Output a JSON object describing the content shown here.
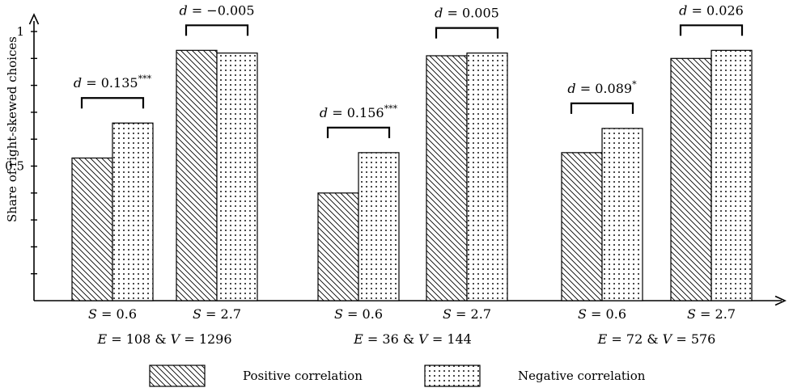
{
  "chart_data": {
    "type": "bar",
    "ylabel": "Share of right-skewed choices",
    "ylim": [
      0,
      1.07
    ],
    "y_tick_labels": [
      {
        "value": 0.5,
        "label": "0.5"
      },
      {
        "value": 1.0,
        "label": "1"
      }
    ],
    "y_minor_tick_step": 0.1,
    "groups": [
      {
        "label": {
          "e_sym": "E",
          "e_val": "108",
          "v_sym": "V",
          "v_val": "1296"
        },
        "subgroups": [
          {
            "s_sym": "S",
            "s_val": "0.6",
            "values": [
              0.53,
              0.66
            ],
            "d_sym": "d",
            "d_val": "0.135",
            "stars": "***"
          },
          {
            "s_sym": "S",
            "s_val": "2.7",
            "values": [
              0.93,
              0.92
            ],
            "d_sym": "d",
            "d_val": "−0.005",
            "stars": ""
          }
        ]
      },
      {
        "label": {
          "e_sym": "E",
          "e_val": "36",
          "v_sym": "V",
          "v_val": "144"
        },
        "subgroups": [
          {
            "s_sym": "S",
            "s_val": "0.6",
            "values": [
              0.4,
              0.55
            ],
            "d_sym": "d",
            "d_val": "0.156",
            "stars": "***"
          },
          {
            "s_sym": "S",
            "s_val": "2.7",
            "values": [
              0.91,
              0.92
            ],
            "d_sym": "d",
            "d_val": "0.005",
            "stars": ""
          }
        ]
      },
      {
        "label": {
          "e_sym": "E",
          "e_val": "72",
          "v_sym": "V",
          "v_val": "576"
        },
        "subgroups": [
          {
            "s_sym": "S",
            "s_val": "0.6",
            "values": [
              0.55,
              0.64
            ],
            "d_sym": "d",
            "d_val": "0.089",
            "stars": "*"
          },
          {
            "s_sym": "S",
            "s_val": "2.7",
            "values": [
              0.9,
              0.93
            ],
            "d_sym": "d",
            "d_val": "0.026",
            "stars": ""
          }
        ]
      }
    ],
    "series": [
      {
        "name": "Positive correlation",
        "pattern": "diagonal-hatch"
      },
      {
        "name": "Negative correlation",
        "pattern": "dots"
      }
    ],
    "legend_position": "bottom",
    "grid": false,
    "colors": {
      "stroke": "#000000",
      "fill": "#ffffff"
    }
  }
}
